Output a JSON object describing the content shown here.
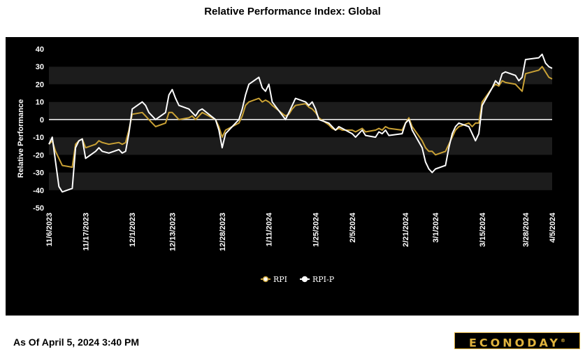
{
  "title": "Relative Performance Index: Global",
  "footer": "As Of April 5, 2024 3:40 PM",
  "brand": "ECONODAY",
  "chart_data": {
    "type": "line",
    "title": "Relative Performance Index: Global",
    "xlabel": "",
    "ylabel": "Relative Performance",
    "ylim": [
      -50,
      40
    ],
    "yticks": [
      -50,
      -40,
      -30,
      -20,
      -10,
      0,
      10,
      20,
      30,
      40
    ],
    "xtick_labels": [
      "11/6/2023",
      "11/17/2023",
      "12/1/2023",
      "12/13/2023",
      "12/28/2023",
      "1/11/2024",
      "1/25/2024",
      "2/5/2024",
      "2/21/2024",
      "3/1/2024",
      "3/15/2024",
      "3/28/2024",
      "4/5/2024"
    ],
    "legend_position": "bottom-center",
    "grid": "alternating horizontal bands",
    "zero_line": true,
    "series": [
      {
        "name": "RPI",
        "color": "#c9a135",
        "values": [
          {
            "x": "2023-11-06",
            "y": -14
          },
          {
            "x": "2023-11-07",
            "y": -12
          },
          {
            "x": "2023-11-08",
            "y": -18
          },
          {
            "x": "2023-11-09",
            "y": -22
          },
          {
            "x": "2023-11-10",
            "y": -26
          },
          {
            "x": "2023-11-13",
            "y": -27
          },
          {
            "x": "2023-11-14",
            "y": -14
          },
          {
            "x": "2023-11-15",
            "y": -12
          },
          {
            "x": "2023-11-16",
            "y": -11
          },
          {
            "x": "2023-11-17",
            "y": -16
          },
          {
            "x": "2023-11-20",
            "y": -14
          },
          {
            "x": "2023-11-21",
            "y": -12
          },
          {
            "x": "2023-11-22",
            "y": -13
          },
          {
            "x": "2023-11-24",
            "y": -14
          },
          {
            "x": "2023-11-27",
            "y": -13
          },
          {
            "x": "2023-11-28",
            "y": -14
          },
          {
            "x": "2023-11-29",
            "y": -13
          },
          {
            "x": "2023-11-30",
            "y": -6
          },
          {
            "x": "2023-12-01",
            "y": 3
          },
          {
            "x": "2023-12-04",
            "y": 4
          },
          {
            "x": "2023-12-05",
            "y": 2
          },
          {
            "x": "2023-12-06",
            "y": 0
          },
          {
            "x": "2023-12-07",
            "y": -2
          },
          {
            "x": "2023-12-08",
            "y": -4
          },
          {
            "x": "2023-12-11",
            "y": -2
          },
          {
            "x": "2023-12-12",
            "y": 4
          },
          {
            "x": "2023-12-13",
            "y": 4
          },
          {
            "x": "2023-12-14",
            "y": 2
          },
          {
            "x": "2023-12-15",
            "y": 0
          },
          {
            "x": "2023-12-18",
            "y": 1
          },
          {
            "x": "2023-12-19",
            "y": 2
          },
          {
            "x": "2023-12-20",
            "y": 0
          },
          {
            "x": "2023-12-21",
            "y": 2
          },
          {
            "x": "2023-12-22",
            "y": 4
          },
          {
            "x": "2023-12-26",
            "y": 0
          },
          {
            "x": "2023-12-27",
            "y": -4
          },
          {
            "x": "2023-12-28",
            "y": -10
          },
          {
            "x": "2023-12-29",
            "y": -6
          },
          {
            "x": "2024-01-02",
            "y": -2
          },
          {
            "x": "2024-01-03",
            "y": 2
          },
          {
            "x": "2024-01-04",
            "y": 8
          },
          {
            "x": "2024-01-05",
            "y": 10
          },
          {
            "x": "2024-01-08",
            "y": 12
          },
          {
            "x": "2024-01-09",
            "y": 10
          },
          {
            "x": "2024-01-10",
            "y": 11
          },
          {
            "x": "2024-01-11",
            "y": 10
          },
          {
            "x": "2024-01-12",
            "y": 8
          },
          {
            "x": "2024-01-16",
            "y": 2
          },
          {
            "x": "2024-01-17",
            "y": 3
          },
          {
            "x": "2024-01-18",
            "y": 6
          },
          {
            "x": "2024-01-19",
            "y": 8
          },
          {
            "x": "2024-01-22",
            "y": 9
          },
          {
            "x": "2024-01-23",
            "y": 7
          },
          {
            "x": "2024-01-24",
            "y": 6
          },
          {
            "x": "2024-01-25",
            "y": 4
          },
          {
            "x": "2024-01-26",
            "y": 1
          },
          {
            "x": "2024-01-29",
            "y": -3
          },
          {
            "x": "2024-01-30",
            "y": -5
          },
          {
            "x": "2024-01-31",
            "y": -6
          },
          {
            "x": "2024-02-01",
            "y": -5
          },
          {
            "x": "2024-02-02",
            "y": -6
          },
          {
            "x": "2024-02-05",
            "y": -6
          },
          {
            "x": "2024-02-06",
            "y": -7
          },
          {
            "x": "2024-02-07",
            "y": -6
          },
          {
            "x": "2024-02-08",
            "y": -5
          },
          {
            "x": "2024-02-09",
            "y": -7
          },
          {
            "x": "2024-02-12",
            "y": -6
          },
          {
            "x": "2024-02-13",
            "y": -5
          },
          {
            "x": "2024-02-14",
            "y": -6
          },
          {
            "x": "2024-02-15",
            "y": -4
          },
          {
            "x": "2024-02-16",
            "y": -5
          },
          {
            "x": "2024-02-20",
            "y": -6
          },
          {
            "x": "2024-02-21",
            "y": -2
          },
          {
            "x": "2024-02-22",
            "y": 1
          },
          {
            "x": "2024-02-23",
            "y": -4
          },
          {
            "x": "2024-02-26",
            "y": -12
          },
          {
            "x": "2024-02-27",
            "y": -16
          },
          {
            "x": "2024-02-28",
            "y": -18
          },
          {
            "x": "2024-02-29",
            "y": -18
          },
          {
            "x": "2024-03-01",
            "y": -20
          },
          {
            "x": "2024-03-04",
            "y": -18
          },
          {
            "x": "2024-03-05",
            "y": -14
          },
          {
            "x": "2024-03-06",
            "y": -10
          },
          {
            "x": "2024-03-07",
            "y": -6
          },
          {
            "x": "2024-03-08",
            "y": -4
          },
          {
            "x": "2024-03-11",
            "y": -2
          },
          {
            "x": "2024-03-12",
            "y": -4
          },
          {
            "x": "2024-03-13",
            "y": -2
          },
          {
            "x": "2024-03-14",
            "y": -2
          },
          {
            "x": "2024-03-15",
            "y": 10
          },
          {
            "x": "2024-03-18",
            "y": 18
          },
          {
            "x": "2024-03-19",
            "y": 20
          },
          {
            "x": "2024-03-20",
            "y": 19
          },
          {
            "x": "2024-03-21",
            "y": 22
          },
          {
            "x": "2024-03-22",
            "y": 21
          },
          {
            "x": "2024-03-25",
            "y": 20
          },
          {
            "x": "2024-03-26",
            "y": 18
          },
          {
            "x": "2024-03-27",
            "y": 16
          },
          {
            "x": "2024-03-28",
            "y": 26
          },
          {
            "x": "2024-04-01",
            "y": 28
          },
          {
            "x": "2024-04-02",
            "y": 30
          },
          {
            "x": "2024-04-03",
            "y": 27
          },
          {
            "x": "2024-04-04",
            "y": 24
          },
          {
            "x": "2024-04-05",
            "y": 23
          }
        ]
      },
      {
        "name": "RPI-P",
        "color": "#ffffff",
        "values": [
          {
            "x": "2023-11-06",
            "y": -14
          },
          {
            "x": "2023-11-07",
            "y": -10
          },
          {
            "x": "2023-11-08",
            "y": -24
          },
          {
            "x": "2023-11-09",
            "y": -38
          },
          {
            "x": "2023-11-10",
            "y": -41
          },
          {
            "x": "2023-11-13",
            "y": -39
          },
          {
            "x": "2023-11-14",
            "y": -16
          },
          {
            "x": "2023-11-15",
            "y": -12
          },
          {
            "x": "2023-11-16",
            "y": -11
          },
          {
            "x": "2023-11-17",
            "y": -22
          },
          {
            "x": "2023-11-20",
            "y": -18
          },
          {
            "x": "2023-11-21",
            "y": -16
          },
          {
            "x": "2023-11-22",
            "y": -18
          },
          {
            "x": "2023-11-24",
            "y": -19
          },
          {
            "x": "2023-11-27",
            "y": -17
          },
          {
            "x": "2023-11-28",
            "y": -19
          },
          {
            "x": "2023-11-29",
            "y": -18
          },
          {
            "x": "2023-11-30",
            "y": -8
          },
          {
            "x": "2023-12-01",
            "y": 6
          },
          {
            "x": "2023-12-04",
            "y": 10
          },
          {
            "x": "2023-12-05",
            "y": 8
          },
          {
            "x": "2023-12-06",
            "y": 4
          },
          {
            "x": "2023-12-07",
            "y": 2
          },
          {
            "x": "2023-12-08",
            "y": 0
          },
          {
            "x": "2023-12-11",
            "y": 4
          },
          {
            "x": "2023-12-12",
            "y": 14
          },
          {
            "x": "2023-12-13",
            "y": 17
          },
          {
            "x": "2023-12-14",
            "y": 12
          },
          {
            "x": "2023-12-15",
            "y": 8
          },
          {
            "x": "2023-12-18",
            "y": 6
          },
          {
            "x": "2023-12-19",
            "y": 4
          },
          {
            "x": "2023-12-20",
            "y": 2
          },
          {
            "x": "2023-12-21",
            "y": 5
          },
          {
            "x": "2023-12-22",
            "y": 6
          },
          {
            "x": "2023-12-26",
            "y": 0
          },
          {
            "x": "2023-12-27",
            "y": -6
          },
          {
            "x": "2023-12-28",
            "y": -16
          },
          {
            "x": "2023-12-29",
            "y": -8
          },
          {
            "x": "2024-01-02",
            "y": 0
          },
          {
            "x": "2024-01-03",
            "y": 6
          },
          {
            "x": "2024-01-04",
            "y": 14
          },
          {
            "x": "2024-01-05",
            "y": 20
          },
          {
            "x": "2024-01-08",
            "y": 24
          },
          {
            "x": "2024-01-09",
            "y": 18
          },
          {
            "x": "2024-01-10",
            "y": 16
          },
          {
            "x": "2024-01-11",
            "y": 20
          },
          {
            "x": "2024-01-12",
            "y": 10
          },
          {
            "x": "2024-01-16",
            "y": 0
          },
          {
            "x": "2024-01-17",
            "y": 4
          },
          {
            "x": "2024-01-18",
            "y": 8
          },
          {
            "x": "2024-01-19",
            "y": 12
          },
          {
            "x": "2024-01-22",
            "y": 10
          },
          {
            "x": "2024-01-23",
            "y": 8
          },
          {
            "x": "2024-01-24",
            "y": 10
          },
          {
            "x": "2024-01-25",
            "y": 6
          },
          {
            "x": "2024-01-26",
            "y": 0
          },
          {
            "x": "2024-01-29",
            "y": -2
          },
          {
            "x": "2024-01-30",
            "y": -4
          },
          {
            "x": "2024-01-31",
            "y": -6
          },
          {
            "x": "2024-02-01",
            "y": -4
          },
          {
            "x": "2024-02-02",
            "y": -5
          },
          {
            "x": "2024-02-05",
            "y": -8
          },
          {
            "x": "2024-02-06",
            "y": -10
          },
          {
            "x": "2024-02-07",
            "y": -8
          },
          {
            "x": "2024-02-08",
            "y": -6
          },
          {
            "x": "2024-02-09",
            "y": -9
          },
          {
            "x": "2024-02-12",
            "y": -10
          },
          {
            "x": "2024-02-13",
            "y": -7
          },
          {
            "x": "2024-02-14",
            "y": -8
          },
          {
            "x": "2024-02-15",
            "y": -6
          },
          {
            "x": "2024-02-16",
            "y": -9
          },
          {
            "x": "2024-02-20",
            "y": -8
          },
          {
            "x": "2024-02-21",
            "y": -2
          },
          {
            "x": "2024-02-22",
            "y": 0
          },
          {
            "x": "2024-02-23",
            "y": -6
          },
          {
            "x": "2024-02-26",
            "y": -16
          },
          {
            "x": "2024-02-27",
            "y": -24
          },
          {
            "x": "2024-02-28",
            "y": -28
          },
          {
            "x": "2024-02-29",
            "y": -30
          },
          {
            "x": "2024-03-01",
            "y": -28
          },
          {
            "x": "2024-03-04",
            "y": -26
          },
          {
            "x": "2024-03-05",
            "y": -16
          },
          {
            "x": "2024-03-06",
            "y": -8
          },
          {
            "x": "2024-03-07",
            "y": -4
          },
          {
            "x": "2024-03-08",
            "y": -2
          },
          {
            "x": "2024-03-11",
            "y": -4
          },
          {
            "x": "2024-03-12",
            "y": -8
          },
          {
            "x": "2024-03-13",
            "y": -12
          },
          {
            "x": "2024-03-14",
            "y": -8
          },
          {
            "x": "2024-03-15",
            "y": 8
          },
          {
            "x": "2024-03-18",
            "y": 18
          },
          {
            "x": "2024-03-19",
            "y": 22
          },
          {
            "x": "2024-03-20",
            "y": 20
          },
          {
            "x": "2024-03-21",
            "y": 26
          },
          {
            "x": "2024-03-22",
            "y": 27
          },
          {
            "x": "2024-03-25",
            "y": 25
          },
          {
            "x": "2024-03-26",
            "y": 22
          },
          {
            "x": "2024-03-27",
            "y": 24
          },
          {
            "x": "2024-03-28",
            "y": 34
          },
          {
            "x": "2024-04-01",
            "y": 35
          },
          {
            "x": "2024-04-02",
            "y": 37
          },
          {
            "x": "2024-04-03",
            "y": 32
          },
          {
            "x": "2024-04-04",
            "y": 30
          },
          {
            "x": "2024-04-05",
            "y": 29
          }
        ]
      }
    ]
  }
}
